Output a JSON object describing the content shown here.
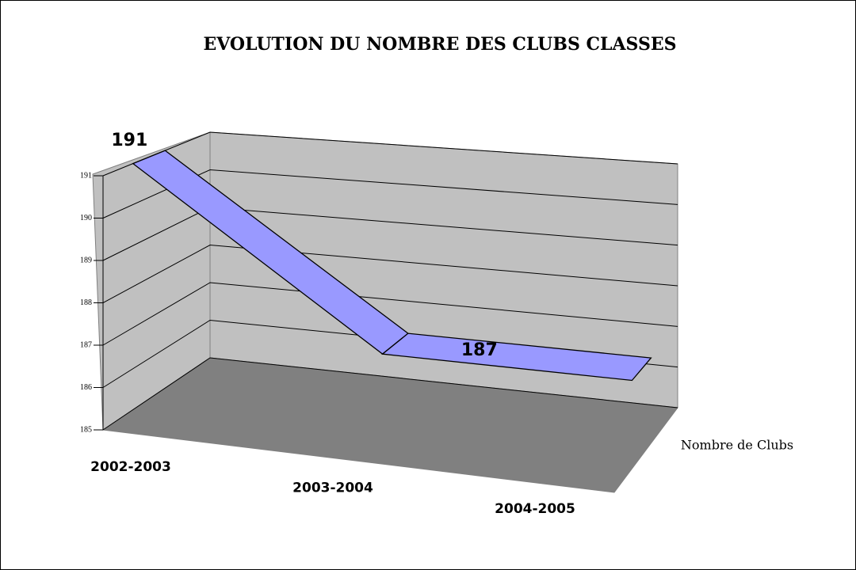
{
  "chart_data": {
    "type": "line3d",
    "title": "EVOLUTION DU NOMBRE DES CLUBS CLASSES",
    "categories": [
      "2002-2003",
      "2003-2004",
      "2004-2005"
    ],
    "series": [
      {
        "name": "Nombre de Clubs",
        "color": "#9999ff",
        "values": [
          191,
          187,
          187
        ]
      }
    ],
    "value_labels": [
      "191",
      "187",
      null
    ],
    "ylim": [
      185,
      191
    ],
    "yticks": [
      185,
      186,
      187,
      188,
      189,
      190,
      191
    ],
    "grid": true
  }
}
